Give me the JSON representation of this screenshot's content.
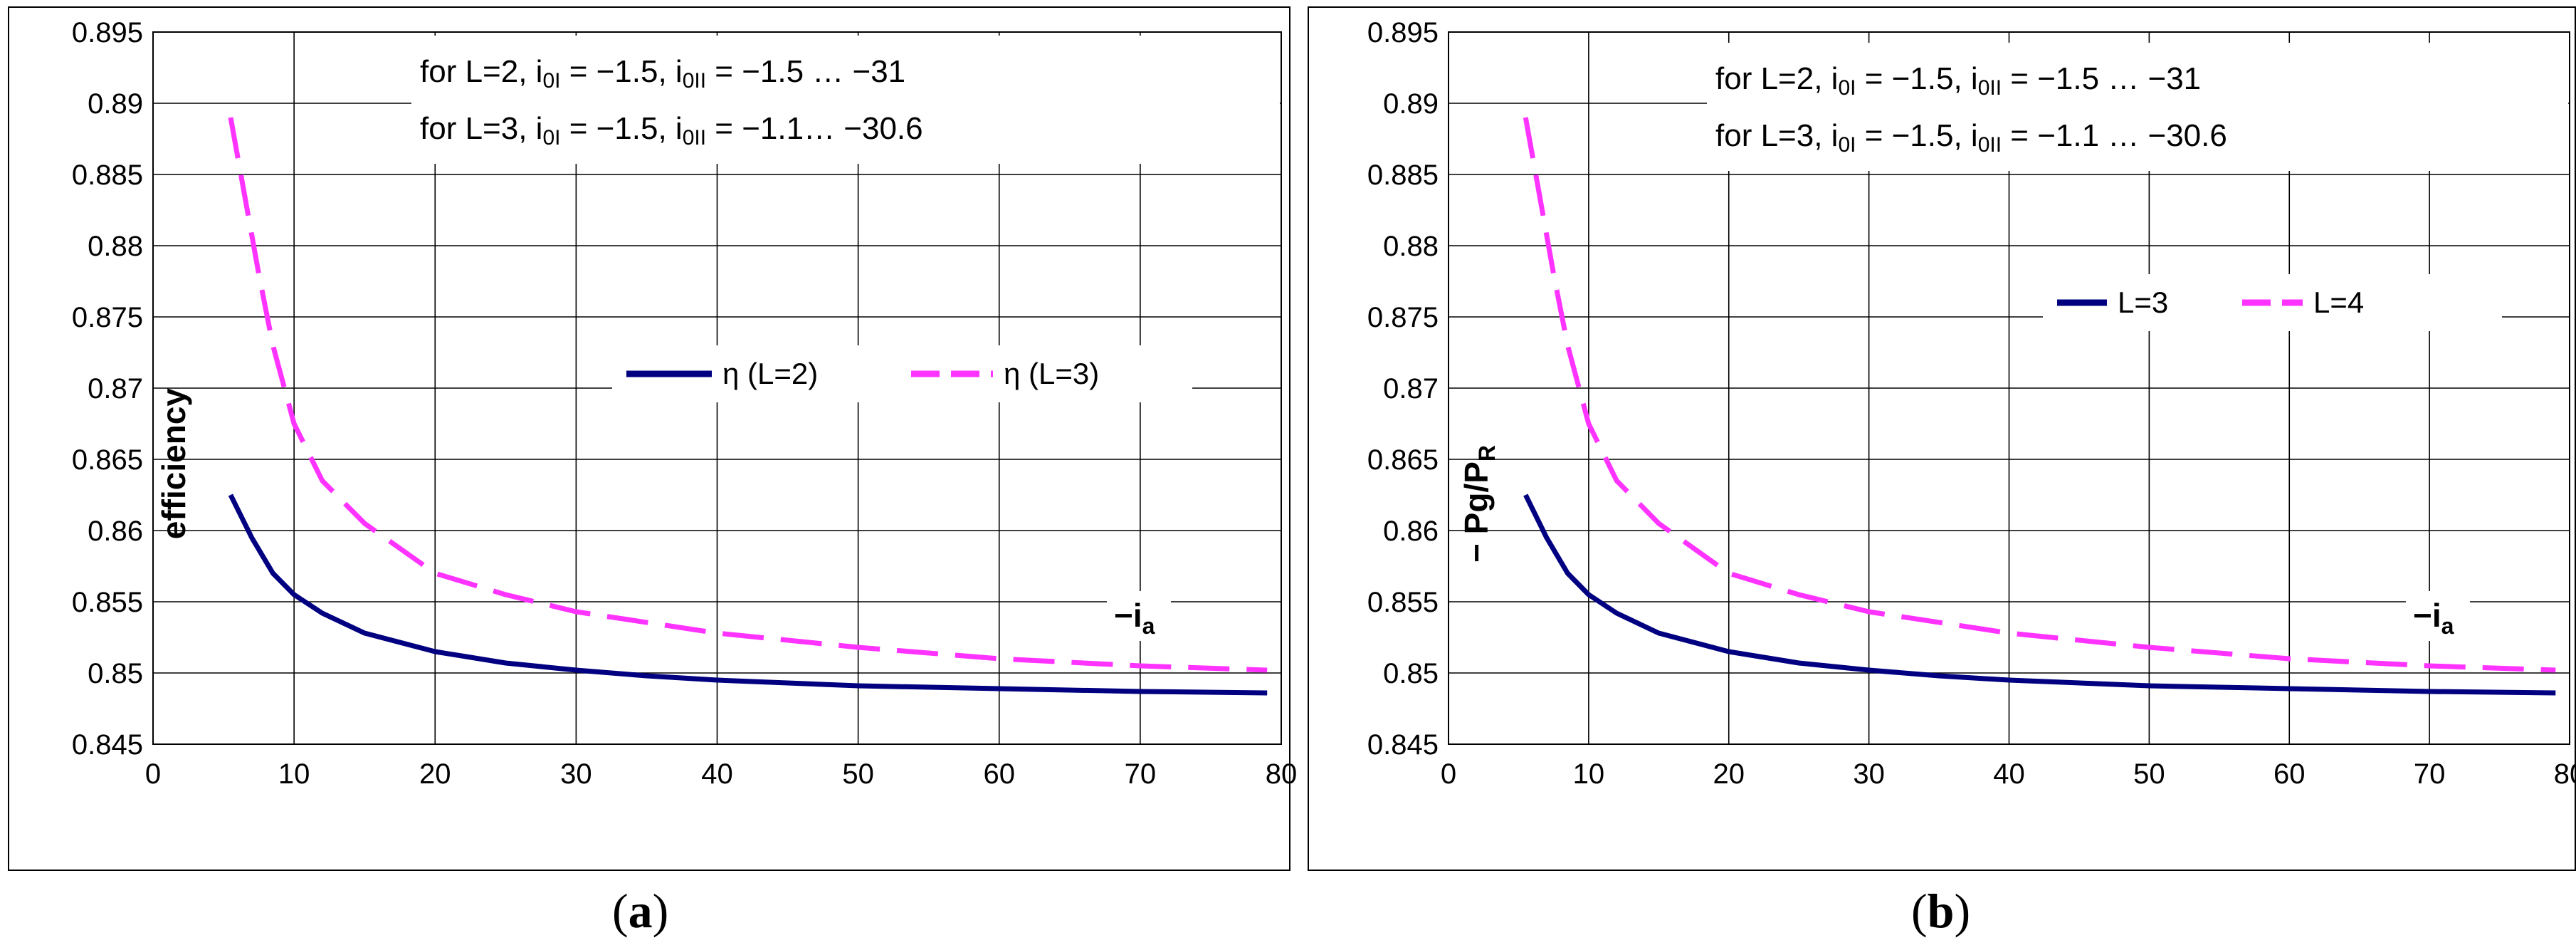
{
  "chart_data": [
    {
      "type": "line",
      "panel": "a",
      "caption_letter": "a",
      "xlim": [
        0,
        80
      ],
      "ylim": [
        0.845,
        0.895
      ],
      "xticks": [
        "0",
        "10",
        "20",
        "30",
        "40",
        "50",
        "60",
        "70",
        "80"
      ],
      "yticks": [
        "0.845",
        "0.85",
        "0.855",
        "0.86",
        "0.865",
        "0.87",
        "0.875",
        "0.88",
        "0.885",
        "0.89",
        "0.895"
      ],
      "ylabel": "efficiency",
      "xlabel": "−i",
      "xlabel_sub": "a",
      "grid": true,
      "legend_position": "middle-right",
      "annotations": [
        "for L=2, i₀₁ = −1.5, i₀₁₁ = −1.5 … −31",
        "for L=3, i₀₁ = −1.5, i₀₁₁ = −1.1… −30.6"
      ],
      "annotation_parts": [
        [
          "for L=2, i",
          "0I",
          " = −1.5, i",
          "0II",
          " = −1.5 … −31"
        ],
        [
          "for L=3, i",
          "0I",
          " = −1.5, i",
          "0II",
          " = −1.1… −30.6"
        ]
      ],
      "series": [
        {
          "name": "η (L=2)",
          "color": "#000080",
          "style": "solid",
          "x": [
            5.5,
            7,
            8.5,
            10,
            12,
            15,
            20,
            25,
            30,
            35,
            40,
            50,
            60,
            70,
            79
          ],
          "y": [
            0.8625,
            0.8595,
            0.857,
            0.8555,
            0.8542,
            0.8528,
            0.8515,
            0.8507,
            0.8502,
            0.8498,
            0.8495,
            0.8491,
            0.8489,
            0.8487,
            0.8486
          ]
        },
        {
          "name": "η (L=3)",
          "color": "#ff33ff",
          "style": "dashed",
          "x": [
            5.5,
            6.5,
            7.5,
            8.5,
            10,
            12,
            15,
            20,
            25,
            30,
            40,
            50,
            60,
            70,
            79
          ],
          "y": [
            0.889,
            0.8835,
            0.878,
            0.873,
            0.8675,
            0.8635,
            0.8605,
            0.857,
            0.8555,
            0.8543,
            0.8528,
            0.8518,
            0.851,
            0.8505,
            0.8502
          ]
        }
      ]
    },
    {
      "type": "line",
      "panel": "b",
      "caption_letter": "b",
      "xlim": [
        0,
        80
      ],
      "ylim": [
        0.845,
        0.895
      ],
      "xticks": [
        "0",
        "10",
        "20",
        "30",
        "40",
        "50",
        "60",
        "70",
        "80"
      ],
      "yticks": [
        "0.845",
        "0.85",
        "0.855",
        "0.86",
        "0.865",
        "0.87",
        "0.875",
        "0.88",
        "0.885",
        "0.89",
        "0.895"
      ],
      "ylabel": "− Pg/P",
      "ylabel_sub": "R",
      "xlabel": "−i",
      "xlabel_sub": "a",
      "grid": true,
      "legend_position": "upper-right",
      "annotations": [
        "for L=2, i₀₁ = −1.5, i₀₁₁ = −1.5 … −31",
        "for L=3, i₀₁ = −1.5, i₀₁₁ = −1.1 … −30.6"
      ],
      "annotation_parts": [
        [
          "for L=2, i",
          "0I",
          " = −1.5, i",
          "0II",
          " = −1.5 … −31"
        ],
        [
          "for L=3, i",
          "0I",
          " = −1.5, i",
          "0II",
          " = −1.1 … −30.6"
        ]
      ],
      "series": [
        {
          "name": "L=3",
          "color": "#000080",
          "style": "solid",
          "x": [
            5.5,
            7,
            8.5,
            10,
            12,
            15,
            20,
            25,
            30,
            35,
            40,
            50,
            60,
            70,
            79
          ],
          "y": [
            0.8625,
            0.8595,
            0.857,
            0.8555,
            0.8542,
            0.8528,
            0.8515,
            0.8507,
            0.8502,
            0.8498,
            0.8495,
            0.8491,
            0.8489,
            0.8487,
            0.8486
          ]
        },
        {
          "name": "L=4",
          "color": "#ff33ff",
          "style": "dashed",
          "x": [
            5.5,
            6.5,
            7.5,
            8.5,
            10,
            12,
            15,
            20,
            25,
            30,
            40,
            50,
            60,
            70,
            79
          ],
          "y": [
            0.889,
            0.8835,
            0.878,
            0.873,
            0.8675,
            0.8635,
            0.8605,
            0.857,
            0.8555,
            0.8543,
            0.8528,
            0.8518,
            0.851,
            0.8505,
            0.8502
          ]
        }
      ]
    }
  ]
}
